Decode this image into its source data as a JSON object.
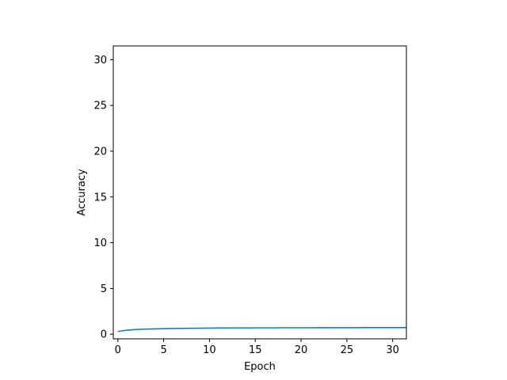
{
  "chart_data": {
    "type": "line",
    "title": "",
    "xlabel": "Epoch",
    "ylabel": "Accuracy",
    "xlim": [
      -0.5,
      31.5
    ],
    "ylim": [
      31.5,
      -0.5
    ],
    "x_ticks": [
      0,
      5,
      10,
      15,
      20,
      25,
      30
    ],
    "y_ticks": [
      0,
      5,
      10,
      15,
      20,
      25,
      30
    ],
    "background_image": "pixelated-32x32-photo-of-a-fluffy-white-and-tan-dog-on-grass-dark-green-background",
    "grid": false,
    "legend": "none",
    "series": [
      {
        "color": "#1f77b4",
        "x": [
          0,
          1,
          2,
          3,
          4,
          5,
          6,
          7,
          8,
          9,
          10,
          11,
          12,
          13,
          14,
          15,
          16,
          17,
          18,
          19,
          20,
          21,
          22,
          23,
          24,
          25,
          26,
          27,
          28,
          29,
          30,
          31,
          31.5
        ],
        "y": [
          0.3,
          0.45,
          0.52,
          0.56,
          0.59,
          0.61,
          0.63,
          0.64,
          0.65,
          0.66,
          0.67,
          0.68,
          0.68,
          0.69,
          0.69,
          0.7,
          0.7,
          0.7,
          0.71,
          0.71,
          0.71,
          0.71,
          0.72,
          0.72,
          0.72,
          0.72,
          0.72,
          0.73,
          0.73,
          0.73,
          0.73,
          0.73,
          0.73
        ]
      }
    ]
  }
}
